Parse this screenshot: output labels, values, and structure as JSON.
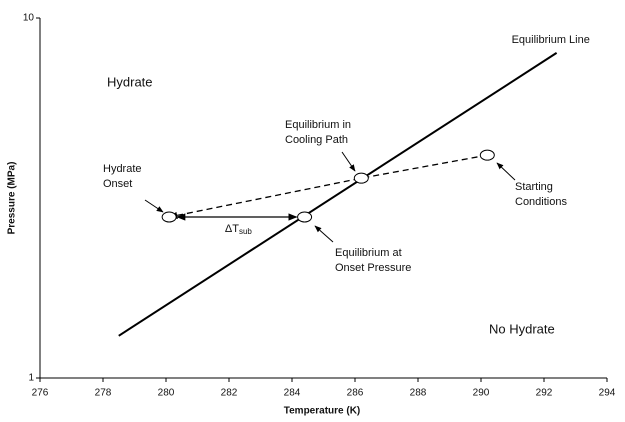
{
  "chart_data": {
    "type": "line",
    "xlabel": "Temperature (K)",
    "ylabel": "Pressure (MPa)",
    "xlim": [
      276,
      294
    ],
    "ylim": [
      1,
      10
    ],
    "yscale": "log",
    "xticks": [
      276,
      278,
      280,
      282,
      284,
      286,
      288,
      290,
      292,
      294
    ],
    "yticks": [
      1,
      10
    ],
    "series": [
      {
        "name": "Equilibrium Line",
        "color": "#000000",
        "x": [
          278.5,
          292.4
        ],
        "values": [
          1.31,
          8.0
        ]
      }
    ],
    "cooling_path": {
      "color": "#000000",
      "x": [
        290.2,
        286.2,
        280.1
      ],
      "values": [
        4.16,
        3.59,
        2.8
      ]
    },
    "subcooling": {
      "x": [
        280.1,
        284.4
      ],
      "values": [
        2.8,
        2.8
      ],
      "label": "ΔT",
      "sub": "sub"
    },
    "regions": [
      "Hydrate",
      "No Hydrate"
    ],
    "annotations": [
      [
        "Hydrate",
        "Onset"
      ],
      [
        "Equilibrium in",
        "Cooling Path"
      ],
      [
        "Starting",
        "Conditions"
      ],
      [
        "Equilibrium at",
        "Onset Pressure"
      ]
    ]
  }
}
